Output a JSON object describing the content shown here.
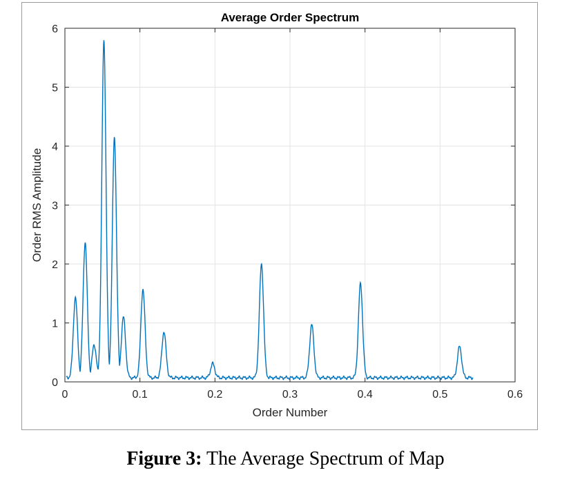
{
  "caption": {
    "label": "Figure 3:",
    "text": " The Average Spectrum of Map"
  },
  "colors": {
    "line": "#0072BD",
    "grid": "#e3e3e3",
    "axis": "#262626",
    "text": "#262626"
  },
  "chart_data": {
    "type": "line",
    "title": "Average Order Spectrum",
    "xlabel": "Order Number",
    "ylabel": "Order RMS Amplitude",
    "xlim": [
      0,
      0.6
    ],
    "ylim": [
      0,
      6
    ],
    "xticks": [
      0,
      0.1,
      0.2,
      0.3,
      0.4,
      0.5,
      0.6
    ],
    "xtick_labels": [
      "0",
      "0.1",
      "0.2",
      "0.3",
      "0.4",
      "0.5",
      "0.6"
    ],
    "yticks": [
      0,
      1,
      2,
      3,
      4,
      5,
      6
    ],
    "ytick_labels": [
      "0",
      "1",
      "2",
      "3",
      "4",
      "5",
      "6"
    ],
    "grid": true,
    "series": [
      {
        "name": "Average Order Spectrum",
        "x_range": [
          0.002,
          0.544
        ],
        "baseline": 0.07,
        "peaks": [
          {
            "x": 0.014,
            "y": 1.43
          },
          {
            "x": 0.027,
            "y": 2.37
          },
          {
            "x": 0.039,
            "y": 0.63
          },
          {
            "x": 0.052,
            "y": 5.78
          },
          {
            "x": 0.066,
            "y": 4.14
          },
          {
            "x": 0.078,
            "y": 1.1
          },
          {
            "x": 0.104,
            "y": 1.57
          },
          {
            "x": 0.132,
            "y": 0.85
          },
          {
            "x": 0.197,
            "y": 0.31
          },
          {
            "x": 0.262,
            "y": 2.0
          },
          {
            "x": 0.329,
            "y": 0.97
          },
          {
            "x": 0.394,
            "y": 1.67
          },
          {
            "x": 0.526,
            "y": 0.6
          }
        ]
      }
    ]
  }
}
